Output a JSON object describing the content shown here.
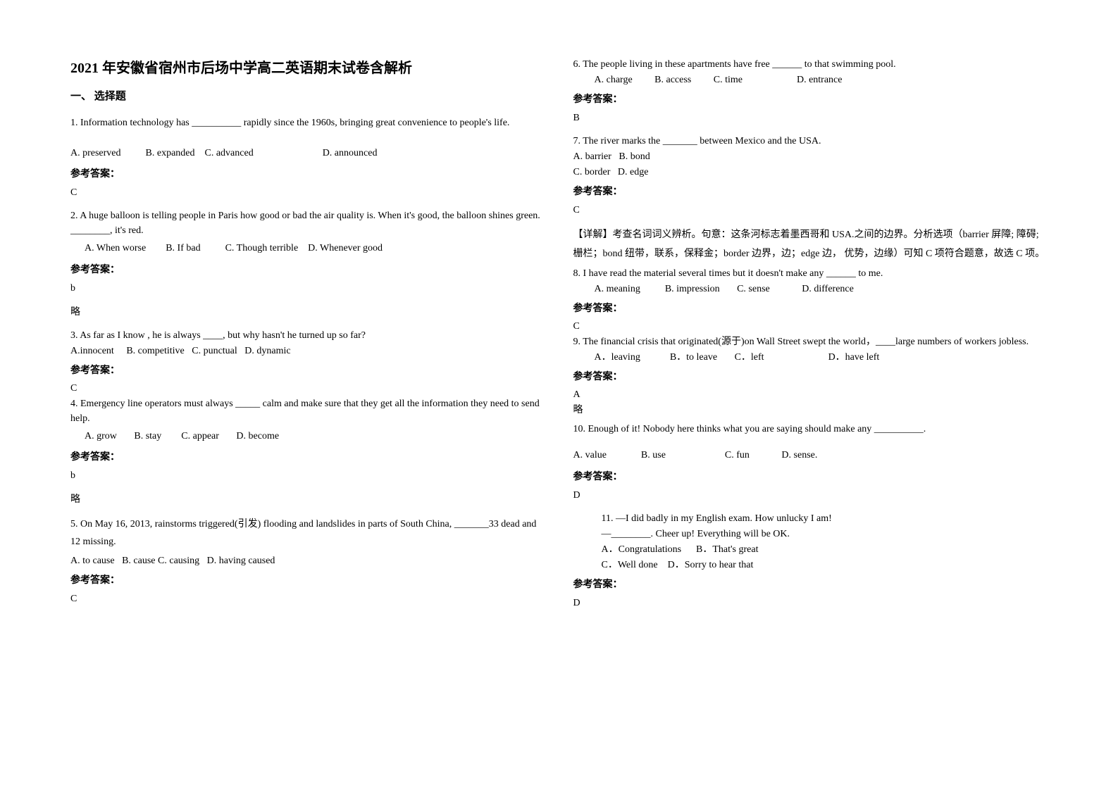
{
  "title": "2021 年安徽省宿州市后场中学高二英语期末试卷含解析",
  "section_header": "一、 选择题",
  "answer_label": "参考答案：",
  "omit": "略",
  "col1": {
    "q1": {
      "text": "1. Information technology has __________ rapidly since the 1960s, bringing great convenience to people's life.",
      "options": "A. preserved          B. expanded    C. advanced                            D. announced",
      "answer": "C"
    },
    "q2": {
      "text": "2. A huge balloon is telling people in Paris how good or bad the air quality is. When it's good, the balloon shines green. ________, it's red.",
      "options": "A. When worse        B. If bad          C. Though terrible    D. Whenever good",
      "answer": "b"
    },
    "q3": {
      "text": "3. As far as I know , he is always ____, but why hasn't he turned up so far?",
      "options": "A.innocent     B. competitive   C. punctual   D. dynamic",
      "answer": "C"
    },
    "q4": {
      "text": "4. Emergency line operators must always _____ calm and make sure that they get all the information they need to send help.",
      "options": "A. grow       B. stay        C. appear       D. become",
      "answer": "b"
    },
    "q5": {
      "text": "5. On May 16, 2013, rainstorms triggered(引发) flooding and landslides in parts of South China, _______33 dead and 12 missing.",
      "options": "A. to cause   B. cause C. causing   D. having caused",
      "answer": "C"
    }
  },
  "col2": {
    "q6": {
      "text": "6. The people living in these apartments have free ______ to that swimming pool.",
      "options": "A. charge         B. access         C. time                      D. entrance",
      "answer": "B"
    },
    "q7": {
      "text": "7. The river marks the _______ between Mexico and the USA.",
      "optA": "A. barrier   B. bond",
      "optC": "C. border   D. edge",
      "answer": "C",
      "explain": "【详解】考查名词词义辨析。句意：这条河标志着墨西哥和 USA.之间的边界。分析选项（barrier 屏障; 障碍; 栅栏；bond 纽带，联系，保释金；border 边界，边；edge 边， 优势，边缘）可知 C 项符合题意，故选 C 项。"
    },
    "q8": {
      "text": "8. I have read the material several times but it doesn't make any ______ to me.",
      "options": "A. meaning          B. impression       C. sense             D. difference",
      "answer": "C"
    },
    "q9": {
      "text": "9. The financial crisis that originated(源于)on Wall Street swept the world，____large numbers of workers jobless.",
      "options": "A．leaving            B．to leave       C．left                          D．have left",
      "answer": "A"
    },
    "q10": {
      "text": "10. Enough of it! Nobody here thinks what you are saying should make any __________.",
      "options": "A. value              B. use                        C. fun             D. sense.",
      "answer": "D"
    },
    "q11": {
      "text": "11. —I did badly in my English exam. How unlucky I am!",
      "line2": "—________. Cheer up! Everything will be OK.",
      "optA": "A．Congratulations      B．That's great",
      "optC": "C．Well done    D．Sorry to hear that",
      "answer": "D"
    }
  }
}
